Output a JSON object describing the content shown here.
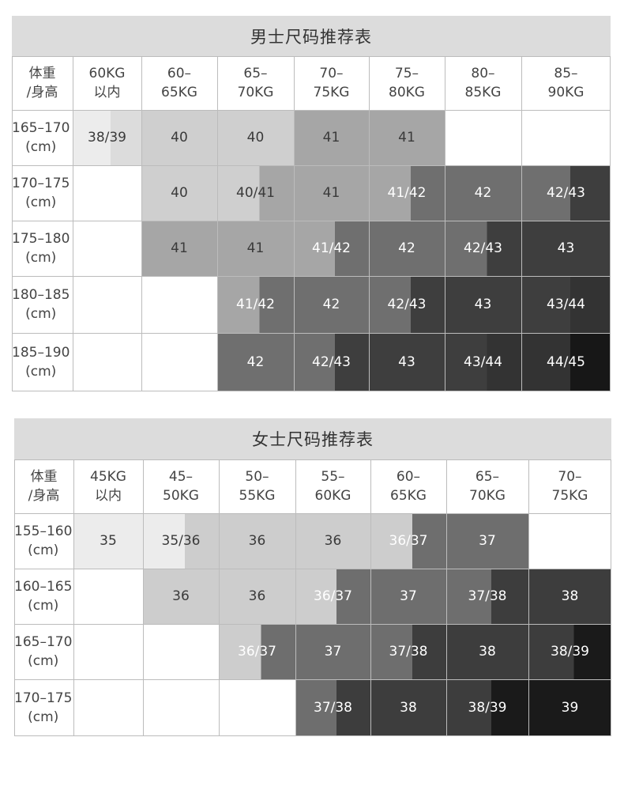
{
  "men": {
    "title": "男士尺码推荐表",
    "corner": "体重\n/身高",
    "columns": [
      "60KG\n以内",
      "60–\n65KG",
      "65–\n70KG",
      "70–\n75KG",
      "75–\n80KG",
      "80–\n85KG",
      "85–\n90KG"
    ],
    "rows": [
      {
        "label": "165–170\n(cm)",
        "cells": [
          "38/39",
          "40",
          "40",
          "41",
          "41",
          "",
          ""
        ]
      },
      {
        "label": "170–175\n(cm)",
        "cells": [
          "",
          "40",
          "40/41",
          "41",
          "41/42",
          "42",
          "42/43"
        ]
      },
      {
        "label": "175–180\n(cm)",
        "cells": [
          "",
          "41",
          "41",
          "41/42",
          "42",
          "42/43",
          "43"
        ]
      },
      {
        "label": "180–185\n(cm)",
        "cells": [
          "",
          "",
          "41/42",
          "42",
          "42/43",
          "43",
          "43/44"
        ]
      },
      {
        "label": "185–190\n(cm)",
        "cells": [
          "",
          "",
          "42",
          "42/43",
          "43",
          "43/44",
          "44/45"
        ]
      }
    ]
  },
  "women": {
    "title": "女士尺码推荐表",
    "corner": "体重\n/身高",
    "columns": [
      "45KG\n以内",
      "45–\n50KG",
      "50–\n55KG",
      "55–\n60KG",
      "60–\n65KG",
      "65–\n70KG",
      "70–\n75KG"
    ],
    "rows": [
      {
        "label": "155–160\n(cm)",
        "cells": [
          "35",
          "35/36",
          "36",
          "36",
          "36/37",
          "37",
          ""
        ]
      },
      {
        "label": "160–165\n(cm)",
        "cells": [
          "",
          "36",
          "36",
          "36/37",
          "37",
          "37/38",
          "38"
        ]
      },
      {
        "label": "165–170\n(cm)",
        "cells": [
          "",
          "",
          "36/37",
          "37",
          "37/38",
          "38",
          "38/39"
        ]
      },
      {
        "label": "170–175\n(cm)",
        "cells": [
          "",
          "",
          "",
          "37/38",
          "38",
          "38/39",
          "39"
        ]
      }
    ]
  },
  "shade_scale": {
    "35": "#ececec",
    "36": "#d0d0d0",
    "37": "#6f6f6f",
    "38": "#404040",
    "39": "#1a1a1a",
    "38/39-men": "#e2e2e2",
    "40": "#cfcfcf",
    "41": "#a7a7a7",
    "42": "#6e6e6e",
    "43": "#3d3d3d",
    "44": "#333333",
    "45": "#171717"
  }
}
